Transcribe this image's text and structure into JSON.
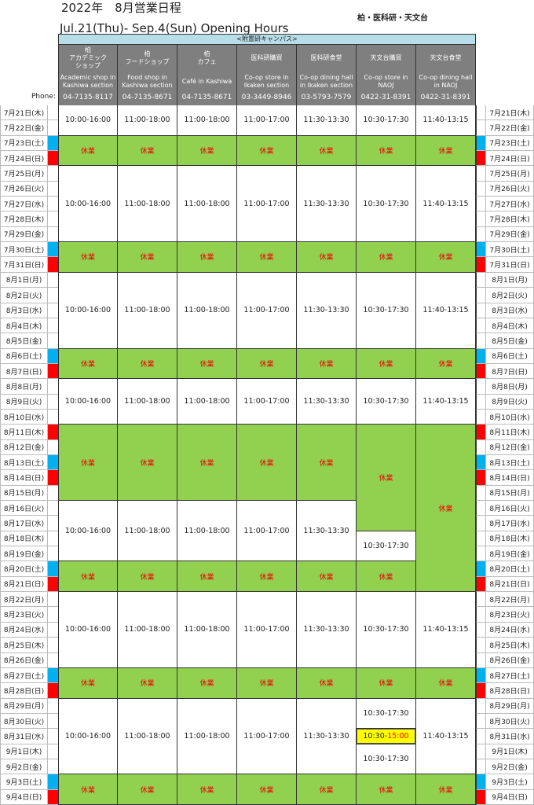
{
  "header": {
    "title": "2022年　8月営業日程",
    "subtitle": "Jul.21(Thu)- Sep.4(Sun) Opening Hours",
    "campuses": "柏・医科研・天文台",
    "banner": "<附置研キャンパス>",
    "phone_label": "Phone:"
  },
  "colors": {
    "closed": "#92d050",
    "closed_text": "#e00000",
    "saturday": "#00b0f0",
    "sunday_holiday": "#ff0000",
    "header_bg": "#7f7f7f",
    "banner_bg": "#b7dde8",
    "highlight": "#ffff00"
  },
  "columns": [
    {
      "ja": "柏\nアカデミック\nショップ",
      "en": "Academic shop in\nKashiwa section",
      "phone": "04-7135-8117"
    },
    {
      "ja": "柏\nフードショップ",
      "en": "Food shop in\nKashiwa section",
      "phone": "04-7135-8671"
    },
    {
      "ja": "柏\nカフェ",
      "en": "Café in Kashiwa",
      "phone": "04-7135-8671"
    },
    {
      "ja": "医科研購買",
      "en": "Co-op store in\nIkaken section",
      "phone": "03-3449-8946"
    },
    {
      "ja": "医科研食堂",
      "en": "Co-op dining hall\nin Ikaken section",
      "phone": "03-5793-7579"
    },
    {
      "ja": "天文台購買",
      "en": "Co-op store in\nNAOJ",
      "phone": "0422-31-8391"
    },
    {
      "ja": "天文台食堂",
      "en": "Co-op dining hall\nin NAOJ",
      "phone": "0422-31-8391"
    }
  ],
  "closed_label": "休業",
  "dates": [
    {
      "d": "7月21日(木)"
    },
    {
      "d": "7月22日(金)"
    },
    {
      "d": "7月23日(土)",
      "m": "sat"
    },
    {
      "d": "7月24日(日)",
      "m": "sun"
    },
    {
      "d": "7月25日(月)"
    },
    {
      "d": "7月26日(火)"
    },
    {
      "d": "7月27日(水)"
    },
    {
      "d": "7月28日(木)"
    },
    {
      "d": "7月29日(金)"
    },
    {
      "d": "7月30日(土)",
      "m": "sat"
    },
    {
      "d": "7月31日(日)",
      "m": "sun"
    },
    {
      "d": "8月1日(月)"
    },
    {
      "d": "8月2日(火)"
    },
    {
      "d": "8月3日(水)"
    },
    {
      "d": "8月4日(木)"
    },
    {
      "d": "8月5日(金)"
    },
    {
      "d": "8月6日(土)",
      "m": "sat"
    },
    {
      "d": "8月7日(日)",
      "m": "sun"
    },
    {
      "d": "8月8日(月)"
    },
    {
      "d": "8月9日(火)"
    },
    {
      "d": "8月10日(水)"
    },
    {
      "d": "8月11日(木)",
      "m": "sun"
    },
    {
      "d": "8月12日(金)"
    },
    {
      "d": "8月13日(土)",
      "m": "sat"
    },
    {
      "d": "8月14日(日)",
      "m": "sun"
    },
    {
      "d": "8月15日(月)"
    },
    {
      "d": "8月16日(火)"
    },
    {
      "d": "8月17日(水)"
    },
    {
      "d": "8月18日(木)"
    },
    {
      "d": "8月19日(金)"
    },
    {
      "d": "8月20日(土)",
      "m": "sat"
    },
    {
      "d": "8月21日(日)",
      "m": "sun"
    },
    {
      "d": "8月22日(月)"
    },
    {
      "d": "8月23日(火)"
    },
    {
      "d": "8月24日(水)"
    },
    {
      "d": "8月25日(木)"
    },
    {
      "d": "8月26日(金)"
    },
    {
      "d": "8月27日(土)",
      "m": "sat"
    },
    {
      "d": "8月28日(日)",
      "m": "sun"
    },
    {
      "d": "8月29日(月)"
    },
    {
      "d": "8月30日(火)"
    },
    {
      "d": "8月31日(水)"
    },
    {
      "d": "9月1日(木)"
    },
    {
      "d": "9月2日(金)"
    },
    {
      "d": "9月3日(土)",
      "m": "sat"
    },
    {
      "d": "9月4日(日)",
      "m": "sun"
    }
  ],
  "schedule": [
    {
      "hours": "10:00-16:00"
    },
    {
      "hours": "11:00-18:00"
    },
    {
      "hours": "11:00-18:00"
    },
    {
      "hours": "11:00-17:00"
    },
    {
      "hours": "11:30-13:30"
    },
    {
      "hours": "10:30-17:30"
    },
    {
      "hours": "11:40-13:15"
    }
  ],
  "blocks_common": [
    [
      0,
      1,
      "o"
    ],
    [
      2,
      3,
      "c"
    ],
    [
      4,
      8,
      "o"
    ],
    [
      9,
      10,
      "c"
    ],
    [
      11,
      15,
      "o"
    ],
    [
      16,
      17,
      "c"
    ],
    [
      18,
      20,
      "o"
    ],
    [
      21,
      25,
      "c"
    ],
    [
      26,
      29,
      "o"
    ],
    [
      30,
      31,
      "c"
    ],
    [
      32,
      36,
      "o"
    ],
    [
      37,
      38,
      "c"
    ],
    [
      39,
      43,
      "o"
    ],
    [
      44,
      45,
      "c"
    ]
  ],
  "blocks_naoj_store": [
    [
      0,
      1,
      "o"
    ],
    [
      2,
      3,
      "c"
    ],
    [
      4,
      8,
      "o"
    ],
    [
      9,
      10,
      "c"
    ],
    [
      11,
      15,
      "o"
    ],
    [
      16,
      17,
      "c"
    ],
    [
      18,
      20,
      "o"
    ],
    [
      21,
      27,
      "c"
    ],
    [
      28,
      29,
      "o"
    ],
    [
      30,
      31,
      "c"
    ],
    [
      32,
      36,
      "o"
    ],
    [
      37,
      38,
      "c"
    ],
    [
      39,
      40,
      "o"
    ],
    [
      41,
      41,
      "h",
      "10:30-",
      "15:00"
    ],
    [
      42,
      43,
      "o"
    ],
    [
      44,
      45,
      "c"
    ]
  ],
  "blocks_naoj_dining": [
    [
      0,
      1,
      "o"
    ],
    [
      2,
      3,
      "c"
    ],
    [
      4,
      8,
      "o"
    ],
    [
      9,
      10,
      "c"
    ],
    [
      11,
      15,
      "o"
    ],
    [
      16,
      17,
      "c"
    ],
    [
      18,
      20,
      "o"
    ],
    [
      21,
      31,
      "c"
    ],
    [
      32,
      36,
      "o"
    ],
    [
      37,
      38,
      "c"
    ],
    [
      39,
      43,
      "o"
    ],
    [
      44,
      45,
      "c"
    ]
  ]
}
